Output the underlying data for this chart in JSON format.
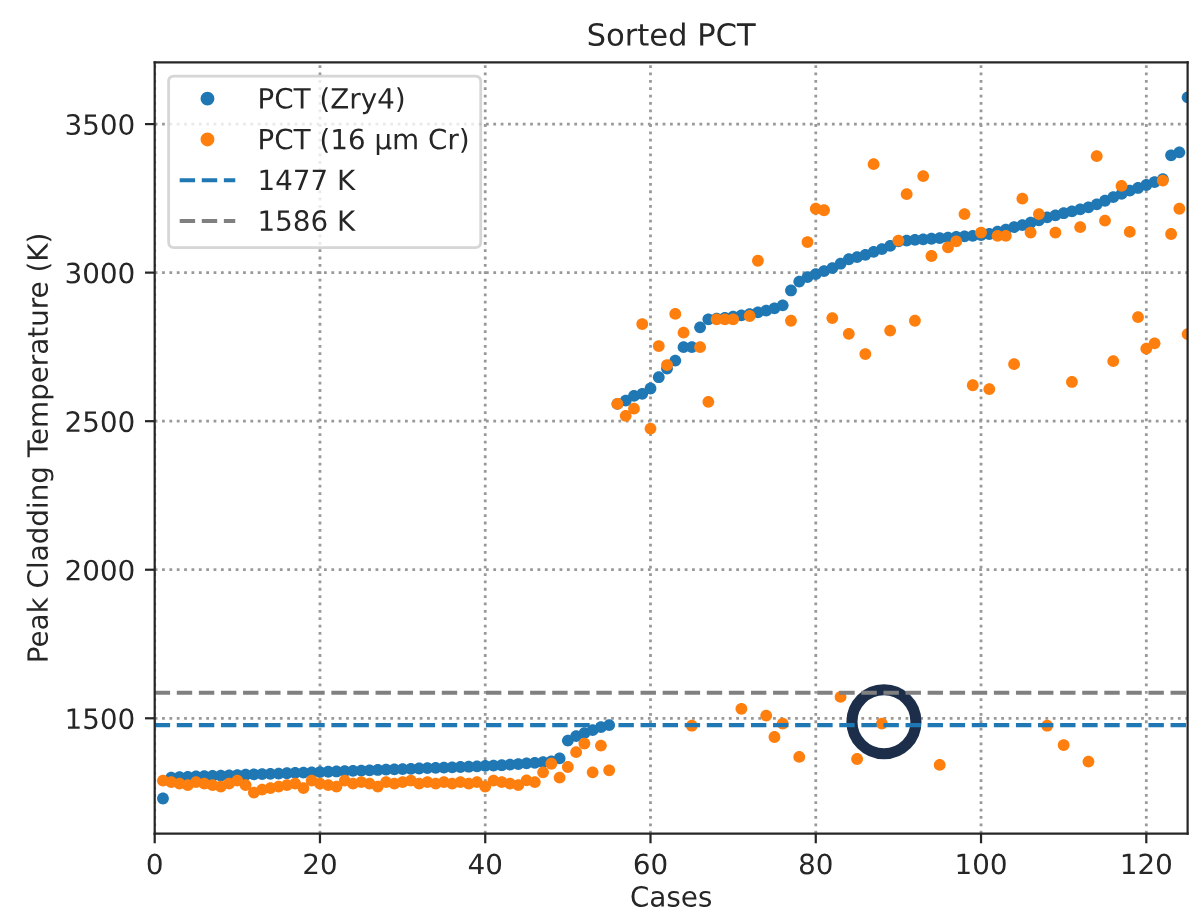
{
  "chart_data": {
    "type": "scatter",
    "title": "Sorted PCT",
    "xlabel": "Cases",
    "ylabel": "Peak Cladding Temperature (K)",
    "x": [
      1,
      2,
      3,
      4,
      5,
      6,
      7,
      8,
      9,
      10,
      11,
      12,
      13,
      14,
      15,
      16,
      17,
      18,
      19,
      20,
      21,
      22,
      23,
      24,
      25,
      26,
      27,
      28,
      29,
      30,
      31,
      32,
      33,
      34,
      35,
      36,
      37,
      38,
      39,
      40,
      41,
      42,
      43,
      44,
      45,
      46,
      47,
      48,
      49,
      50,
      51,
      52,
      53,
      54,
      55,
      56,
      57,
      58,
      59,
      60,
      61,
      62,
      63,
      64,
      65,
      66,
      67,
      68,
      69,
      70,
      71,
      72,
      73,
      74,
      75,
      76,
      77,
      78,
      79,
      80,
      81,
      82,
      83,
      84,
      85,
      86,
      87,
      88,
      89,
      90,
      91,
      92,
      93,
      94,
      95,
      96,
      97,
      98,
      99,
      100,
      101,
      102,
      103,
      104,
      105,
      106,
      107,
      108,
      109,
      110,
      111,
      112,
      113,
      114,
      115,
      116,
      117,
      118,
      119,
      120,
      121,
      122,
      123,
      124,
      125
    ],
    "series": [
      {
        "name": "PCT (Zry4)",
        "color": "#1f77b4",
        "values": [
          1230,
          1300,
          1302,
          1303,
          1304,
          1305,
          1306,
          1307,
          1308,
          1309,
          1310,
          1311,
          1312,
          1313,
          1314,
          1315,
          1316,
          1317,
          1318,
          1319,
          1320,
          1321,
          1322,
          1323,
          1324,
          1325,
          1326,
          1327,
          1328,
          1329,
          1330,
          1331,
          1332,
          1333,
          1334,
          1335,
          1336,
          1337,
          1338,
          1340,
          1341,
          1342,
          1344,
          1346,
          1348,
          1350,
          1352,
          1355,
          1365,
          1425,
          1440,
          1450,
          1460,
          1470,
          1477,
          2558,
          2569,
          2585,
          2592,
          2610,
          2648,
          2677,
          2704,
          2749,
          2749,
          2816,
          2843,
          2845,
          2848,
          2852,
          2856,
          2860,
          2866,
          2872,
          2880,
          2890,
          2940,
          2970,
          2985,
          2995,
          3005,
          3015,
          3030,
          3045,
          3052,
          3060,
          3070,
          3079,
          3090,
          3105,
          3108,
          3110,
          3112,
          3114,
          3116,
          3118,
          3120,
          3122,
          3124,
          3126,
          3130,
          3138,
          3145,
          3153,
          3160,
          3168,
          3176,
          3186,
          3193,
          3200,
          3206,
          3213,
          3220,
          3230,
          3242,
          3254,
          3265,
          3276,
          3285,
          3295,
          3305,
          3315,
          3395,
          3405,
          3590
        ]
      },
      {
        "name": "PCT (16 μm Cr)",
        "color": "#ff7f0e",
        "values": [
          1290,
          1285,
          1280,
          1275,
          1285,
          1280,
          1275,
          1270,
          1280,
          1290,
          1275,
          1250,
          1260,
          1265,
          1270,
          1275,
          1280,
          1265,
          1290,
          1280,
          1275,
          1270,
          1290,
          1280,
          1285,
          1280,
          1270,
          1285,
          1280,
          1285,
          1290,
          1280,
          1285,
          1280,
          1285,
          1280,
          1285,
          1280,
          1285,
          1270,
          1290,
          1285,
          1280,
          1275,
          1291,
          1285,
          1318,
          1347,
          1300,
          1336,
          1386,
          1415,
          1318,
          1408,
          1325,
          2558,
          2518,
          2542,
          2827,
          2475,
          2753,
          2689,
          2861,
          2798,
          1475,
          2749,
          2565,
          2843,
          2843,
          2843,
          1532,
          2854,
          3040,
          1509,
          1437,
          1482,
          2838,
          1370,
          3103,
          3215,
          3210,
          2847,
          1572,
          2794,
          1363,
          2726,
          3365,
          1482,
          2805,
          3108,
          3264,
          2838,
          3325,
          3056,
          1343,
          3085,
          3105,
          3197,
          2621,
          3135,
          2608,
          3124,
          3124,
          2692,
          3249,
          3135,
          3197,
          1475,
          3135,
          1410,
          2632,
          3153,
          1354,
          3392,
          3175,
          2702,
          3292,
          3137,
          2850,
          2744,
          2762,
          3310,
          3130,
          3215,
          2793
        ]
      }
    ],
    "ref_lines": [
      {
        "axis": "y",
        "value": 1477,
        "label": "1477 K",
        "color": "#1f77b4",
        "line_style": "dashed"
      },
      {
        "axis": "y",
        "value": 1586,
        "label": "1586 K",
        "color": "#808080",
        "line_style": "dashed"
      }
    ],
    "xlim": [
      0,
      125
    ],
    "ylim": [
      1112,
      3708
    ],
    "xticks": [
      0,
      20,
      40,
      60,
      80,
      100,
      120
    ],
    "yticks": [
      1500,
      2000,
      2500,
      3000,
      3500
    ],
    "grid": true,
    "legend": "top left",
    "marker": "circle"
  }
}
